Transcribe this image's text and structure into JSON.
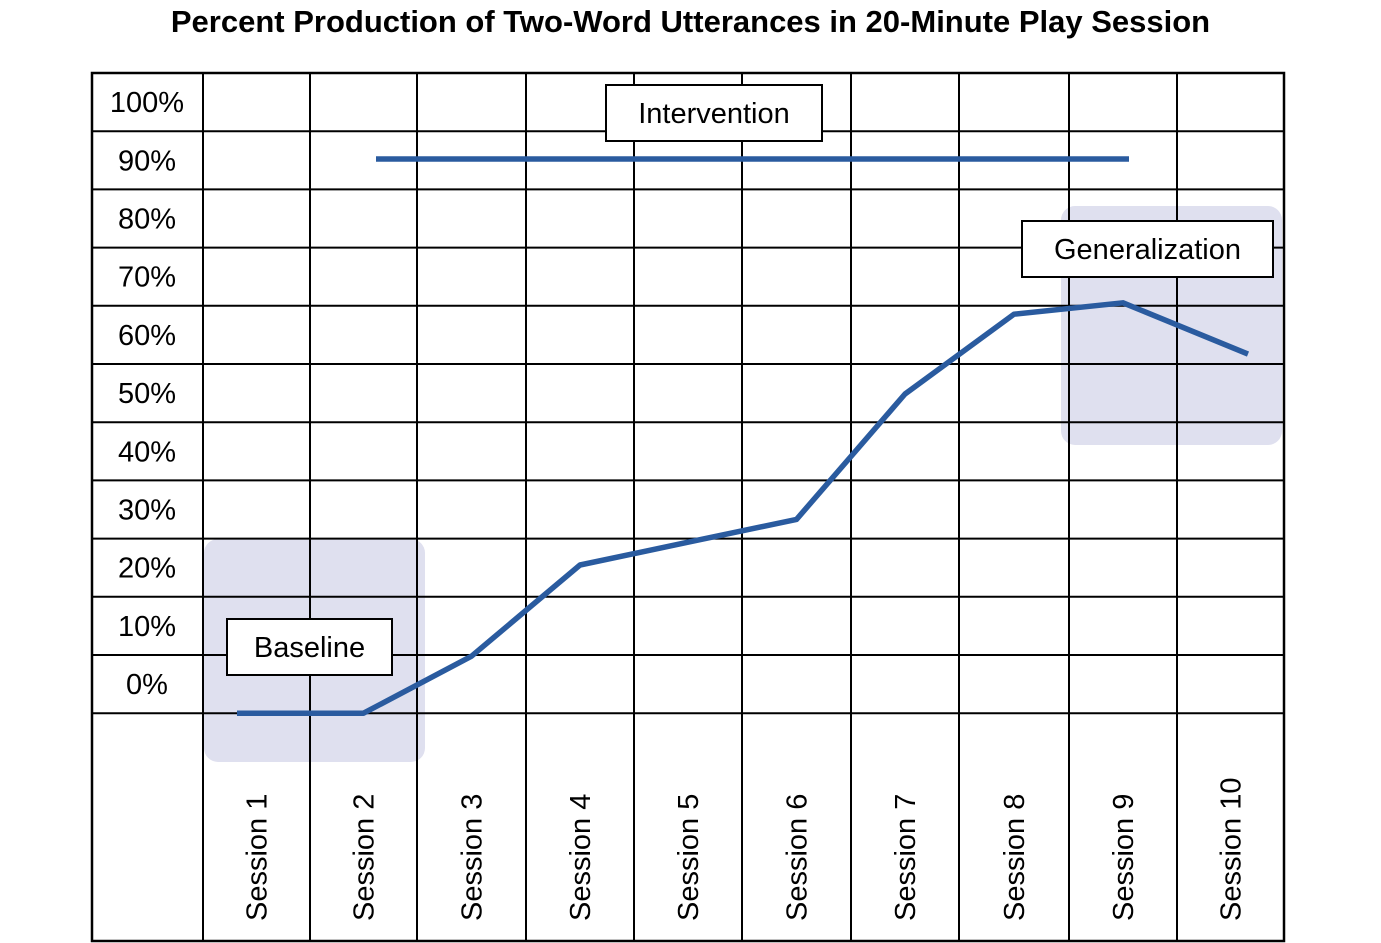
{
  "chart_data": {
    "type": "line",
    "title": "Percent Production of Two-Word Utterances in 20-Minute Play Session",
    "categories": [
      "Session 1",
      "Session 2",
      "Session 3",
      "Session 4",
      "Session 5",
      "Session 6",
      "Session 7",
      "Session 8",
      "Session 9",
      "Session 10"
    ],
    "y_ticks": [
      "100%",
      "90%",
      "80%",
      "70%",
      "60%",
      "50%",
      "40%",
      "30%",
      "20%",
      "10%",
      "0%"
    ],
    "ylim": [
      0,
      100
    ],
    "grid": true,
    "series": [
      {
        "values": [
          0,
          0,
          10,
          26,
          30,
          34,
          56,
          70,
          72,
          63
        ],
        "color": "#2a5b9f"
      }
    ],
    "phase_line": {
      "label": "Intervention",
      "value": 99,
      "from": "Session 2.5",
      "to": "Session 9.5"
    },
    "annotations": [
      "Baseline",
      "Intervention",
      "Generalization"
    ],
    "shaded_regions": [
      {
        "label": "Baseline",
        "sessions": [
          "Session 1",
          "Session 2"
        ],
        "color": "#dfe0ef"
      },
      {
        "label": "Generalization",
        "sessions": [
          "Session 9",
          "Session 10"
        ],
        "color": "#dfe0ef"
      }
    ]
  }
}
